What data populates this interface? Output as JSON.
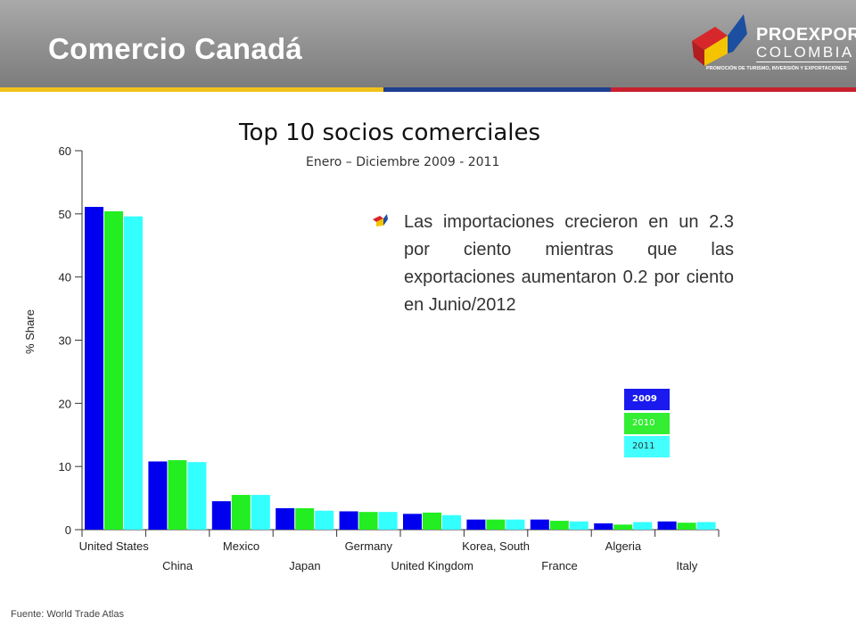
{
  "slide": {
    "title": "Comercio Canadá",
    "source": "Fuente: World Trade Atlas",
    "note": "Las importaciones crecieron en un 2.3 por ciento mientras que las exportaciones aumentaron 0.2 por ciento en Junio/2012"
  },
  "logo": {
    "name_line1": "PROEXPORT",
    "name_line2": "COLOMBIA",
    "tagline": "PROMOCIÓN DE TURISMO, INVERSIÓN Y EXPORTACIONES"
  },
  "colors": {
    "header_stripe": [
      "#f2c21b",
      "#1e3f8f",
      "#c8202f"
    ],
    "logo_red": "#d6282b",
    "logo_yellow": "#f5c400",
    "logo_blue": "#1c4fa0"
  },
  "chart_data": {
    "type": "bar",
    "title": "Top 10 socios comerciales",
    "subtitle": "Enero – Diciembre 2009 - 2011",
    "ylabel": "% Share",
    "xlabel": "",
    "ylim": [
      0,
      60
    ],
    "yticks": [
      "0",
      "10",
      "20",
      "30",
      "40",
      "50",
      "60"
    ],
    "grid": false,
    "legend_position": "right",
    "categories": [
      "United States",
      "China",
      "Mexico",
      "Japan",
      "Germany",
      "United Kingdom",
      "Korea, South",
      "France",
      "Algeria",
      "Italy"
    ],
    "series": [
      {
        "name": "2009",
        "color": "#0000ee",
        "values": [
          51.1,
          10.8,
          4.5,
          3.4,
          2.9,
          2.5,
          1.6,
          1.6,
          1.0,
          1.3
        ]
      },
      {
        "name": "2010",
        "color": "#22ee22",
        "values": [
          50.4,
          11.0,
          5.5,
          3.4,
          2.8,
          2.7,
          1.6,
          1.4,
          0.8,
          1.1
        ]
      },
      {
        "name": "2011",
        "color": "#33ffff",
        "values": [
          49.6,
          10.7,
          5.5,
          3.0,
          2.8,
          2.3,
          1.6,
          1.3,
          1.2,
          1.2
        ]
      }
    ]
  }
}
